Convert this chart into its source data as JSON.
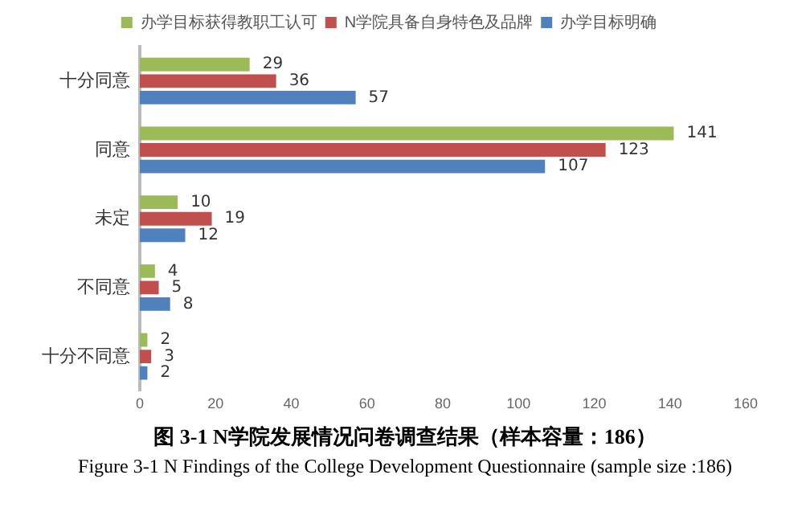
{
  "chart_data": {
    "type": "bar",
    "orientation": "horizontal",
    "categories": [
      "十分同意",
      "同意",
      "未定",
      "不同意",
      "十分不同意"
    ],
    "series": [
      {
        "name": "办学目标获得教职工认可",
        "color": "#9bbb59",
        "values": [
          29,
          141,
          10,
          4,
          2
        ]
      },
      {
        "name": "N学院具备自身特色及品牌",
        "color": "#c0504d",
        "values": [
          36,
          123,
          19,
          5,
          3
        ]
      },
      {
        "name": "办学目标明确",
        "color": "#4f81bd",
        "values": [
          57,
          107,
          12,
          8,
          2
        ]
      }
    ],
    "xlim": [
      0,
      160
    ],
    "xticks": [
      0,
      20,
      40,
      60,
      80,
      100,
      120,
      140,
      160
    ],
    "grid": false,
    "legend": "top",
    "data_labels": true,
    "annotations": [
      "图 3-1 N学院发展情况问卷调查结果（样本容量：186）",
      "Figure 3-1 N Findings of the College Development Questionnaire (sample size :186)"
    ]
  }
}
